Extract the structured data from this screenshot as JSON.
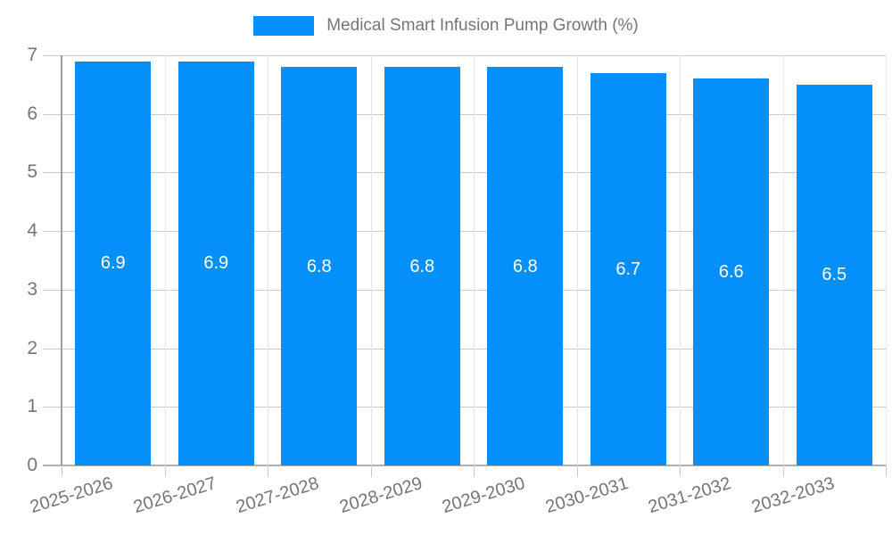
{
  "legend": {
    "label": "Medical Smart Infusion Pump Growth (%)"
  },
  "colors": {
    "bar": "#0490F8",
    "bar_label_text": "#ffffff",
    "axis_text": "#757575",
    "grid_horizontal": "#cccccc",
    "grid_vertical": "#e6e6e6",
    "baseline": "#b0b0b0",
    "y_axis_line": "#9e9e9e",
    "background": "#ffffff"
  },
  "chart_data": {
    "type": "bar",
    "title": "Medical Smart Infusion Pump Growth (%)",
    "categories": [
      "2025-2026",
      "2026-2027",
      "2027-2028",
      "2028-2029",
      "2029-2030",
      "2030-2031",
      "2031-2032",
      "2032-2033"
    ],
    "series": [
      {
        "name": "Medical Smart Infusion Pump Growth (%)",
        "values": [
          6.9,
          6.9,
          6.8,
          6.8,
          6.8,
          6.7,
          6.6,
          6.5
        ],
        "color": "#0490F8"
      }
    ],
    "bar_value_labels": [
      "6.9",
      "6.9",
      "6.8",
      "6.8",
      "6.8",
      "6.7",
      "6.6",
      "6.5"
    ],
    "xlabel": "",
    "ylabel": "",
    "ylim": [
      0,
      7
    ],
    "yticks": [
      0,
      1,
      2,
      3,
      4,
      5,
      6,
      7
    ],
    "grid": true,
    "legend_position": "top",
    "x_label_rotation_deg": -17
  }
}
